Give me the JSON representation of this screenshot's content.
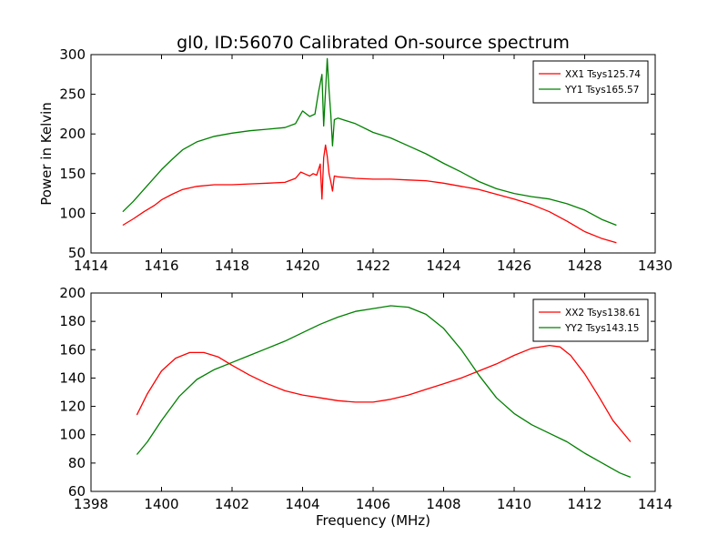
{
  "figure": {
    "title": "gl0, ID:56070 Calibrated On-source spectrum"
  },
  "chart_data": [
    {
      "type": "line",
      "title": "gl0, ID:56070 Calibrated On-source spectrum",
      "xlabel": "",
      "ylabel": "Power in Kelvin",
      "xlim": [
        1414,
        1430
      ],
      "ylim": [
        50,
        300
      ],
      "xticks": [
        1414,
        1416,
        1418,
        1420,
        1422,
        1424,
        1426,
        1428,
        1430
      ],
      "yticks": [
        50,
        100,
        150,
        200,
        250,
        300
      ],
      "legend": "top-right",
      "grid": false,
      "series": [
        {
          "name": "XX1 Tsys125.74",
          "color": "#ff0000",
          "x": [
            1414.9,
            1415.2,
            1415.5,
            1415.8,
            1416.0,
            1416.3,
            1416.6,
            1417.0,
            1417.5,
            1418.0,
            1418.5,
            1419.0,
            1419.5,
            1419.8,
            1419.95,
            1420.1,
            1420.2,
            1420.3,
            1420.4,
            1420.5,
            1420.55,
            1420.6,
            1420.65,
            1420.7,
            1420.75,
            1420.8,
            1420.85,
            1420.9,
            1421.0,
            1421.5,
            1422.0,
            1422.5,
            1423.0,
            1423.5,
            1424.0,
            1424.5,
            1425.0,
            1425.5,
            1426.0,
            1426.5,
            1427.0,
            1427.5,
            1428.0,
            1428.5,
            1428.9
          ],
          "values": [
            85,
            93,
            102,
            110,
            117,
            124,
            130,
            134,
            136,
            136,
            137,
            138,
            139,
            144,
            152,
            149,
            147,
            150,
            148,
            162,
            118,
            170,
            186,
            172,
            150,
            140,
            128,
            147,
            146,
            144,
            143,
            143,
            142,
            141,
            138,
            134,
            130,
            124,
            118,
            111,
            102,
            90,
            77,
            68,
            63
          ]
        },
        {
          "name": "YY1 Tsys165.57",
          "color": "#008000",
          "x": [
            1414.9,
            1415.2,
            1415.5,
            1415.8,
            1416.0,
            1416.3,
            1416.6,
            1417.0,
            1417.5,
            1418.0,
            1418.5,
            1419.0,
            1419.5,
            1419.8,
            1420.0,
            1420.2,
            1420.35,
            1420.45,
            1420.55,
            1420.6,
            1420.7,
            1420.75,
            1420.8,
            1420.85,
            1420.9,
            1421.0,
            1421.5,
            1422.0,
            1422.5,
            1423.0,
            1423.5,
            1424.0,
            1424.5,
            1425.0,
            1425.5,
            1426.0,
            1426.5,
            1427.0,
            1427.5,
            1428.0,
            1428.5,
            1428.9
          ],
          "values": [
            102,
            115,
            130,
            145,
            155,
            168,
            180,
            190,
            197,
            201,
            204,
            206,
            208,
            213,
            229,
            222,
            225,
            252,
            275,
            210,
            295,
            255,
            225,
            185,
            218,
            220,
            213,
            202,
            195,
            185,
            175,
            163,
            152,
            140,
            131,
            125,
            121,
            118,
            112,
            104,
            92,
            85
          ]
        }
      ]
    },
    {
      "type": "line",
      "title": "",
      "xlabel": "Frequency (MHz)",
      "ylabel": "",
      "xlim": [
        1398,
        1414
      ],
      "ylim": [
        60,
        200
      ],
      "xticks": [
        1398,
        1400,
        1402,
        1404,
        1406,
        1408,
        1410,
        1412,
        1414
      ],
      "yticks": [
        60,
        80,
        100,
        120,
        140,
        160,
        180,
        200
      ],
      "legend": "top-right",
      "grid": false,
      "series": [
        {
          "name": "XX2 Tsys138.61",
          "color": "#ff0000",
          "x": [
            1399.3,
            1399.6,
            1400.0,
            1400.4,
            1400.8,
            1401.2,
            1401.6,
            1402.0,
            1402.5,
            1403.0,
            1403.5,
            1404.0,
            1404.5,
            1405.0,
            1405.5,
            1406.0,
            1406.5,
            1407.0,
            1407.5,
            1408.0,
            1408.5,
            1409.0,
            1409.5,
            1410.0,
            1410.5,
            1411.0,
            1411.3,
            1411.6,
            1412.0,
            1412.4,
            1412.8,
            1413.3
          ],
          "values": [
            114,
            129,
            145,
            154,
            158,
            158,
            155,
            149,
            142,
            136,
            131,
            128,
            126,
            124,
            123,
            123,
            125,
            128,
            132,
            136,
            140,
            145,
            150,
            156,
            161,
            163,
            162,
            156,
            143,
            127,
            110,
            95
          ]
        },
        {
          "name": "YY2 Tsys143.15",
          "color": "#008000",
          "x": [
            1399.3,
            1399.6,
            1400.0,
            1400.5,
            1401.0,
            1401.5,
            1402.0,
            1402.5,
            1403.0,
            1403.5,
            1404.0,
            1404.5,
            1405.0,
            1405.5,
            1406.0,
            1406.5,
            1407.0,
            1407.5,
            1408.0,
            1408.5,
            1409.0,
            1409.5,
            1410.0,
            1410.5,
            1411.0,
            1411.5,
            1412.0,
            1412.5,
            1413.0,
            1413.3
          ],
          "values": [
            86,
            95,
            110,
            127,
            139,
            146,
            151,
            156,
            161,
            166,
            172,
            178,
            183,
            187,
            189,
            191,
            190,
            185,
            175,
            160,
            142,
            126,
            115,
            107,
            101,
            95,
            87,
            80,
            73,
            70
          ]
        }
      ]
    }
  ]
}
